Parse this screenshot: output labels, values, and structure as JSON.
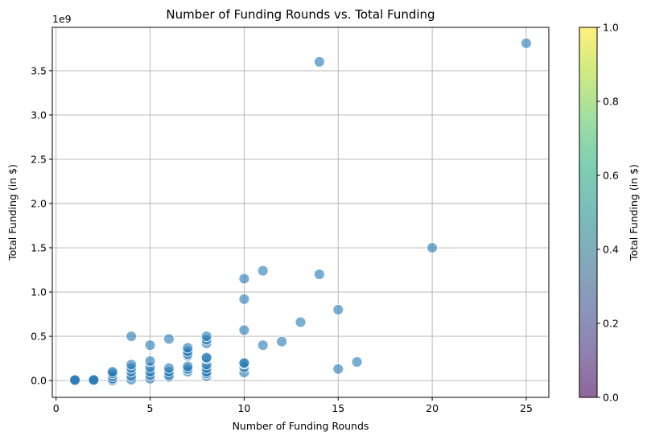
{
  "chart_data": {
    "type": "scatter",
    "title": "Number of Funding Rounds vs. Total Funding",
    "xlabel": "Number of Funding Rounds",
    "ylabel": "Total Funding (in $)",
    "y_offset_label": "1e9",
    "xlim": [
      -0.2,
      26.2
    ],
    "ylim": [
      -0.19,
      3.99
    ],
    "y_unit_multiplier": 1000000000,
    "x_ticks": [
      0,
      5,
      10,
      15,
      20,
      25
    ],
    "y_ticks": [
      0.0,
      0.5,
      1.0,
      1.5,
      2.0,
      2.5,
      3.0,
      3.5
    ],
    "x_tick_labels": [
      "0",
      "5",
      "10",
      "15",
      "20",
      "25"
    ],
    "y_tick_labels": [
      "0.0",
      "0.5",
      "1.0",
      "1.5",
      "2.0",
      "2.5",
      "3.0",
      "3.5"
    ],
    "grid": true,
    "point_color": "#1f77b4",
    "point_alpha": 0.6,
    "colorbar": {
      "label": "Total Funding (in $)",
      "range": [
        0.0,
        1.0
      ],
      "ticks": [
        0.0,
        0.2,
        0.4,
        0.6,
        0.8,
        1.0
      ],
      "tick_labels": [
        "0.0",
        "0.2",
        "0.4",
        "0.6",
        "0.8",
        "1.0"
      ],
      "colormap": "viridis"
    },
    "points": [
      {
        "x": 1,
        "y": 0.0
      },
      {
        "x": 1,
        "y": 0.003
      },
      {
        "x": 1,
        "y": 0.006
      },
      {
        "x": 2,
        "y": 0.0
      },
      {
        "x": 2,
        "y": 0.004
      },
      {
        "x": 2,
        "y": 0.008
      },
      {
        "x": 3,
        "y": 0.0
      },
      {
        "x": 3,
        "y": 0.02
      },
      {
        "x": 3,
        "y": 0.05
      },
      {
        "x": 3,
        "y": 0.08
      },
      {
        "x": 3,
        "y": 0.1
      },
      {
        "x": 4,
        "y": 0.01
      },
      {
        "x": 4,
        "y": 0.05
      },
      {
        "x": 4,
        "y": 0.1
      },
      {
        "x": 4,
        "y": 0.14
      },
      {
        "x": 4,
        "y": 0.18
      },
      {
        "x": 4,
        "y": 0.5
      },
      {
        "x": 5,
        "y": 0.02
      },
      {
        "x": 5,
        "y": 0.06
      },
      {
        "x": 5,
        "y": 0.1
      },
      {
        "x": 5,
        "y": 0.15
      },
      {
        "x": 5,
        "y": 0.22
      },
      {
        "x": 5,
        "y": 0.4
      },
      {
        "x": 6,
        "y": 0.04
      },
      {
        "x": 6,
        "y": 0.06
      },
      {
        "x": 6,
        "y": 0.1
      },
      {
        "x": 6,
        "y": 0.14
      },
      {
        "x": 6,
        "y": 0.47
      },
      {
        "x": 7,
        "y": 0.1
      },
      {
        "x": 7,
        "y": 0.13
      },
      {
        "x": 7,
        "y": 0.16
      },
      {
        "x": 7,
        "y": 0.28
      },
      {
        "x": 7,
        "y": 0.3
      },
      {
        "x": 7,
        "y": 0.33
      },
      {
        "x": 7,
        "y": 0.37
      },
      {
        "x": 8,
        "y": 0.05
      },
      {
        "x": 8,
        "y": 0.08
      },
      {
        "x": 8,
        "y": 0.1
      },
      {
        "x": 8,
        "y": 0.14
      },
      {
        "x": 8,
        "y": 0.18
      },
      {
        "x": 8,
        "y": 0.25
      },
      {
        "x": 8,
        "y": 0.26
      },
      {
        "x": 8,
        "y": 0.42
      },
      {
        "x": 8,
        "y": 0.46
      },
      {
        "x": 8,
        "y": 0.5
      },
      {
        "x": 10,
        "y": 0.09
      },
      {
        "x": 10,
        "y": 0.15
      },
      {
        "x": 10,
        "y": 0.19
      },
      {
        "x": 10,
        "y": 0.2
      },
      {
        "x": 10,
        "y": 0.57
      },
      {
        "x": 10,
        "y": 0.92
      },
      {
        "x": 10,
        "y": 1.15
      },
      {
        "x": 11,
        "y": 0.4
      },
      {
        "x": 11,
        "y": 1.24
      },
      {
        "x": 12,
        "y": 0.44
      },
      {
        "x": 13,
        "y": 0.66
      },
      {
        "x": 14,
        "y": 1.2
      },
      {
        "x": 14,
        "y": 3.6
      },
      {
        "x": 15,
        "y": 0.13
      },
      {
        "x": 15,
        "y": 0.8
      },
      {
        "x": 16,
        "y": 0.21
      },
      {
        "x": 20,
        "y": 1.5
      },
      {
        "x": 25,
        "y": 3.81
      }
    ]
  }
}
